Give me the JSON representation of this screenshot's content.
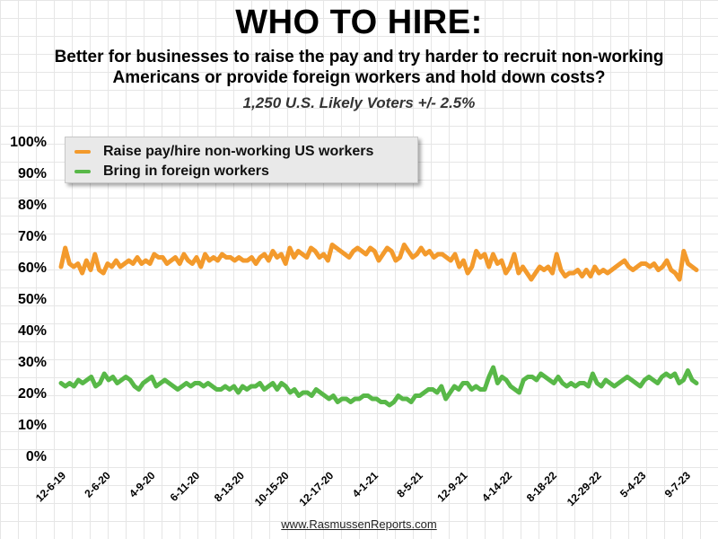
{
  "title": "WHO TO HIRE:",
  "subtitle": "Better for businesses to raise the pay and try harder to recruit non-working Americans or provide foreign workers and hold down costs?",
  "sample_note": "1,250 U.S. Likely Voters +/- 2.5%",
  "footer": "www.RasmussenReports.com",
  "chart_data": {
    "type": "line",
    "ylim": [
      0,
      100
    ],
    "y_ticks": [
      "0%",
      "10%",
      "20%",
      "30%",
      "40%",
      "50%",
      "60%",
      "70%",
      "80%",
      "90%",
      "100%"
    ],
    "x_ticks": [
      "12-6-19",
      "2-6-20",
      "4-9-20",
      "6-11-20",
      "8-13-20",
      "10-15-20",
      "12-17-20",
      "4-1-21",
      "8-5-21",
      "12-9-21",
      "4-14-22",
      "8-18-22",
      "12-29-22",
      "5-4-23",
      "9-7-23"
    ],
    "legend_position": "top-left",
    "grid": true,
    "series": [
      {
        "name": "Raise pay/hire non-working US workers",
        "color": "#f39a2c",
        "values": [
          60,
          66,
          61,
          60,
          61,
          58,
          62,
          59,
          64,
          59,
          58,
          61,
          60,
          62,
          60,
          61,
          62,
          61,
          63,
          61,
          62,
          61,
          64,
          63,
          63,
          61,
          62,
          63,
          61,
          64,
          62,
          61,
          63,
          60,
          64,
          62,
          63,
          62,
          64,
          63,
          63,
          62,
          63,
          62,
          62,
          63,
          61,
          63,
          64,
          62,
          65,
          63,
          64,
          61,
          66,
          63,
          65,
          64,
          63,
          66,
          65,
          63,
          64,
          62,
          67,
          66,
          65,
          64,
          63,
          65,
          66,
          65,
          64,
          66,
          65,
          62,
          64,
          66,
          65,
          62,
          63,
          67,
          65,
          63,
          64,
          66,
          64,
          65,
          63,
          64,
          64,
          63,
          62,
          64,
          60,
          62,
          58,
          60,
          65,
          63,
          64,
          60,
          64,
          61,
          62,
          58,
          60,
          64,
          58,
          60,
          58,
          56,
          58,
          60,
          59,
          60,
          58,
          64,
          59,
          57,
          58,
          58,
          59,
          57,
          59,
          57,
          60,
          58,
          59,
          58,
          59,
          60,
          61,
          62,
          60,
          59,
          60,
          61,
          61,
          60,
          61,
          59,
          60,
          62,
          59,
          58,
          56,
          65,
          61,
          60,
          59
        ]
      },
      {
        "name": "Bring in foreign workers",
        "color": "#58b848",
        "values": [
          23,
          22,
          23,
          22,
          24,
          23,
          24,
          25,
          22,
          23,
          26,
          24,
          25,
          23,
          24,
          25,
          24,
          22,
          21,
          23,
          24,
          25,
          22,
          23,
          24,
          23,
          22,
          21,
          22,
          23,
          22,
          23,
          23,
          22,
          23,
          22,
          21,
          21,
          22,
          21,
          22,
          20,
          22,
          21,
          22,
          22,
          23,
          21,
          22,
          23,
          21,
          23,
          22,
          20,
          21,
          19,
          20,
          20,
          19,
          21,
          20,
          19,
          18,
          19,
          17,
          18,
          18,
          17,
          18,
          18,
          19,
          19,
          18,
          18,
          17,
          17,
          16,
          17,
          19,
          18,
          18,
          17,
          19,
          19,
          20,
          21,
          21,
          20,
          22,
          18,
          20,
          22,
          21,
          23,
          23,
          21,
          22,
          21,
          21,
          25,
          28,
          23,
          25,
          24,
          22,
          21,
          20,
          24,
          25,
          25,
          24,
          26,
          25,
          24,
          23,
          25,
          23,
          22,
          23,
          22,
          23,
          23,
          22,
          26,
          23,
          22,
          24,
          23,
          22,
          23,
          24,
          25,
          24,
          23,
          22,
          24,
          25,
          24,
          23,
          25,
          26,
          25,
          26,
          23,
          24,
          27,
          24,
          23
        ]
      }
    ]
  }
}
